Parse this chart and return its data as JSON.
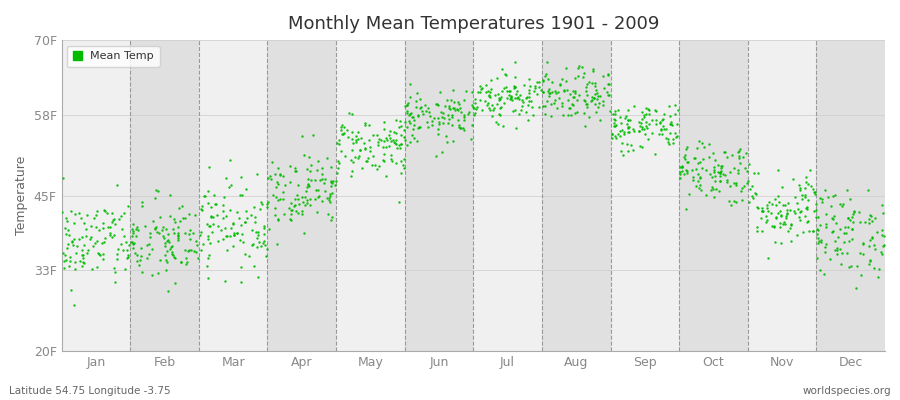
{
  "title": "Monthly Mean Temperatures 1901 - 2009",
  "ylabel": "Temperature",
  "xlabel_bottom_left": "Latitude 54.75 Longitude -3.75",
  "xlabel_bottom_right": "worldspecies.org",
  "legend_label": "Mean Temp",
  "dot_color": "#00bb00",
  "background_color": "#ffffff",
  "plot_bg_color_light": "#f0f0f0",
  "plot_bg_color_dark": "#e0e0e0",
  "ytick_labels": [
    "20F",
    "33F",
    "45F",
    "58F",
    "70F"
  ],
  "ytick_values": [
    20,
    33,
    45,
    58,
    70
  ],
  "ylim": [
    20,
    70
  ],
  "months": [
    "Jan",
    "Feb",
    "Mar",
    "Apr",
    "May",
    "Jun",
    "Jul",
    "Aug",
    "Sep",
    "Oct",
    "Nov",
    "Dec"
  ],
  "mean_temps_f": [
    37.5,
    37.5,
    40.5,
    46.0,
    53.0,
    57.5,
    61.0,
    61.0,
    56.0,
    49.0,
    43.0,
    39.0
  ],
  "std_devs_f": [
    3.5,
    3.5,
    3.5,
    3.0,
    2.5,
    2.0,
    2.0,
    2.0,
    2.0,
    2.5,
    3.0,
    3.5
  ],
  "n_years": 109,
  "seed": 42,
  "dot_size": 3
}
